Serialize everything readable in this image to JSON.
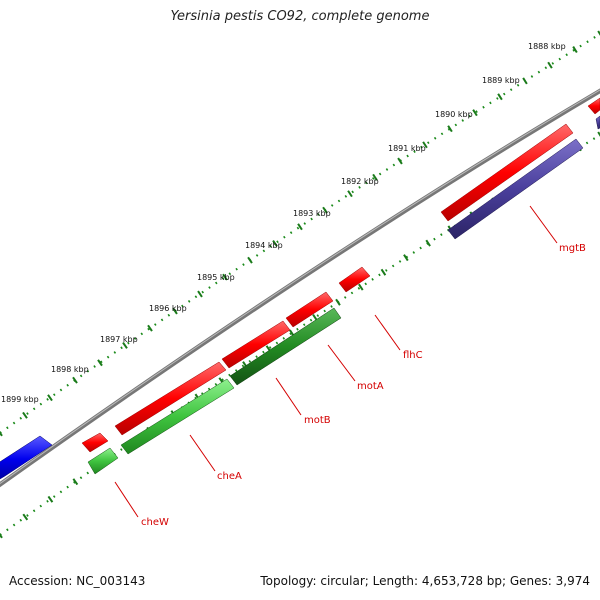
{
  "title": "Yersinia pestis CO92, complete genome",
  "footer": {
    "accession": "Accession: NC_003143",
    "summary": "Topology: circular; Length: 4,653,728 bp; Genes: 3,974"
  },
  "ruler": {
    "labels": [
      "1888 kbp",
      "1889 kbp",
      "1890 kbp",
      "1891 kbp",
      "1892 kbp",
      "1893 kbp",
      "1894 kbp",
      "1895 kbp",
      "1896 kbp",
      "1897 kbp",
      "1898 kbp",
      "1899 kbp"
    ]
  },
  "genes": [
    "cheW",
    "cheA",
    "motB",
    "motA",
    "flhC",
    "mgtB"
  ],
  "colors": {
    "forward_strand": "#ff0000",
    "reverse_strand": "#228b22",
    "reverse_light": "#44cc44",
    "mgtB_feature": "#4a3f9c",
    "other_feature": "#0000ee",
    "backbone": "#888888",
    "tick": "#1a7a1a",
    "label": "#d40000"
  }
}
